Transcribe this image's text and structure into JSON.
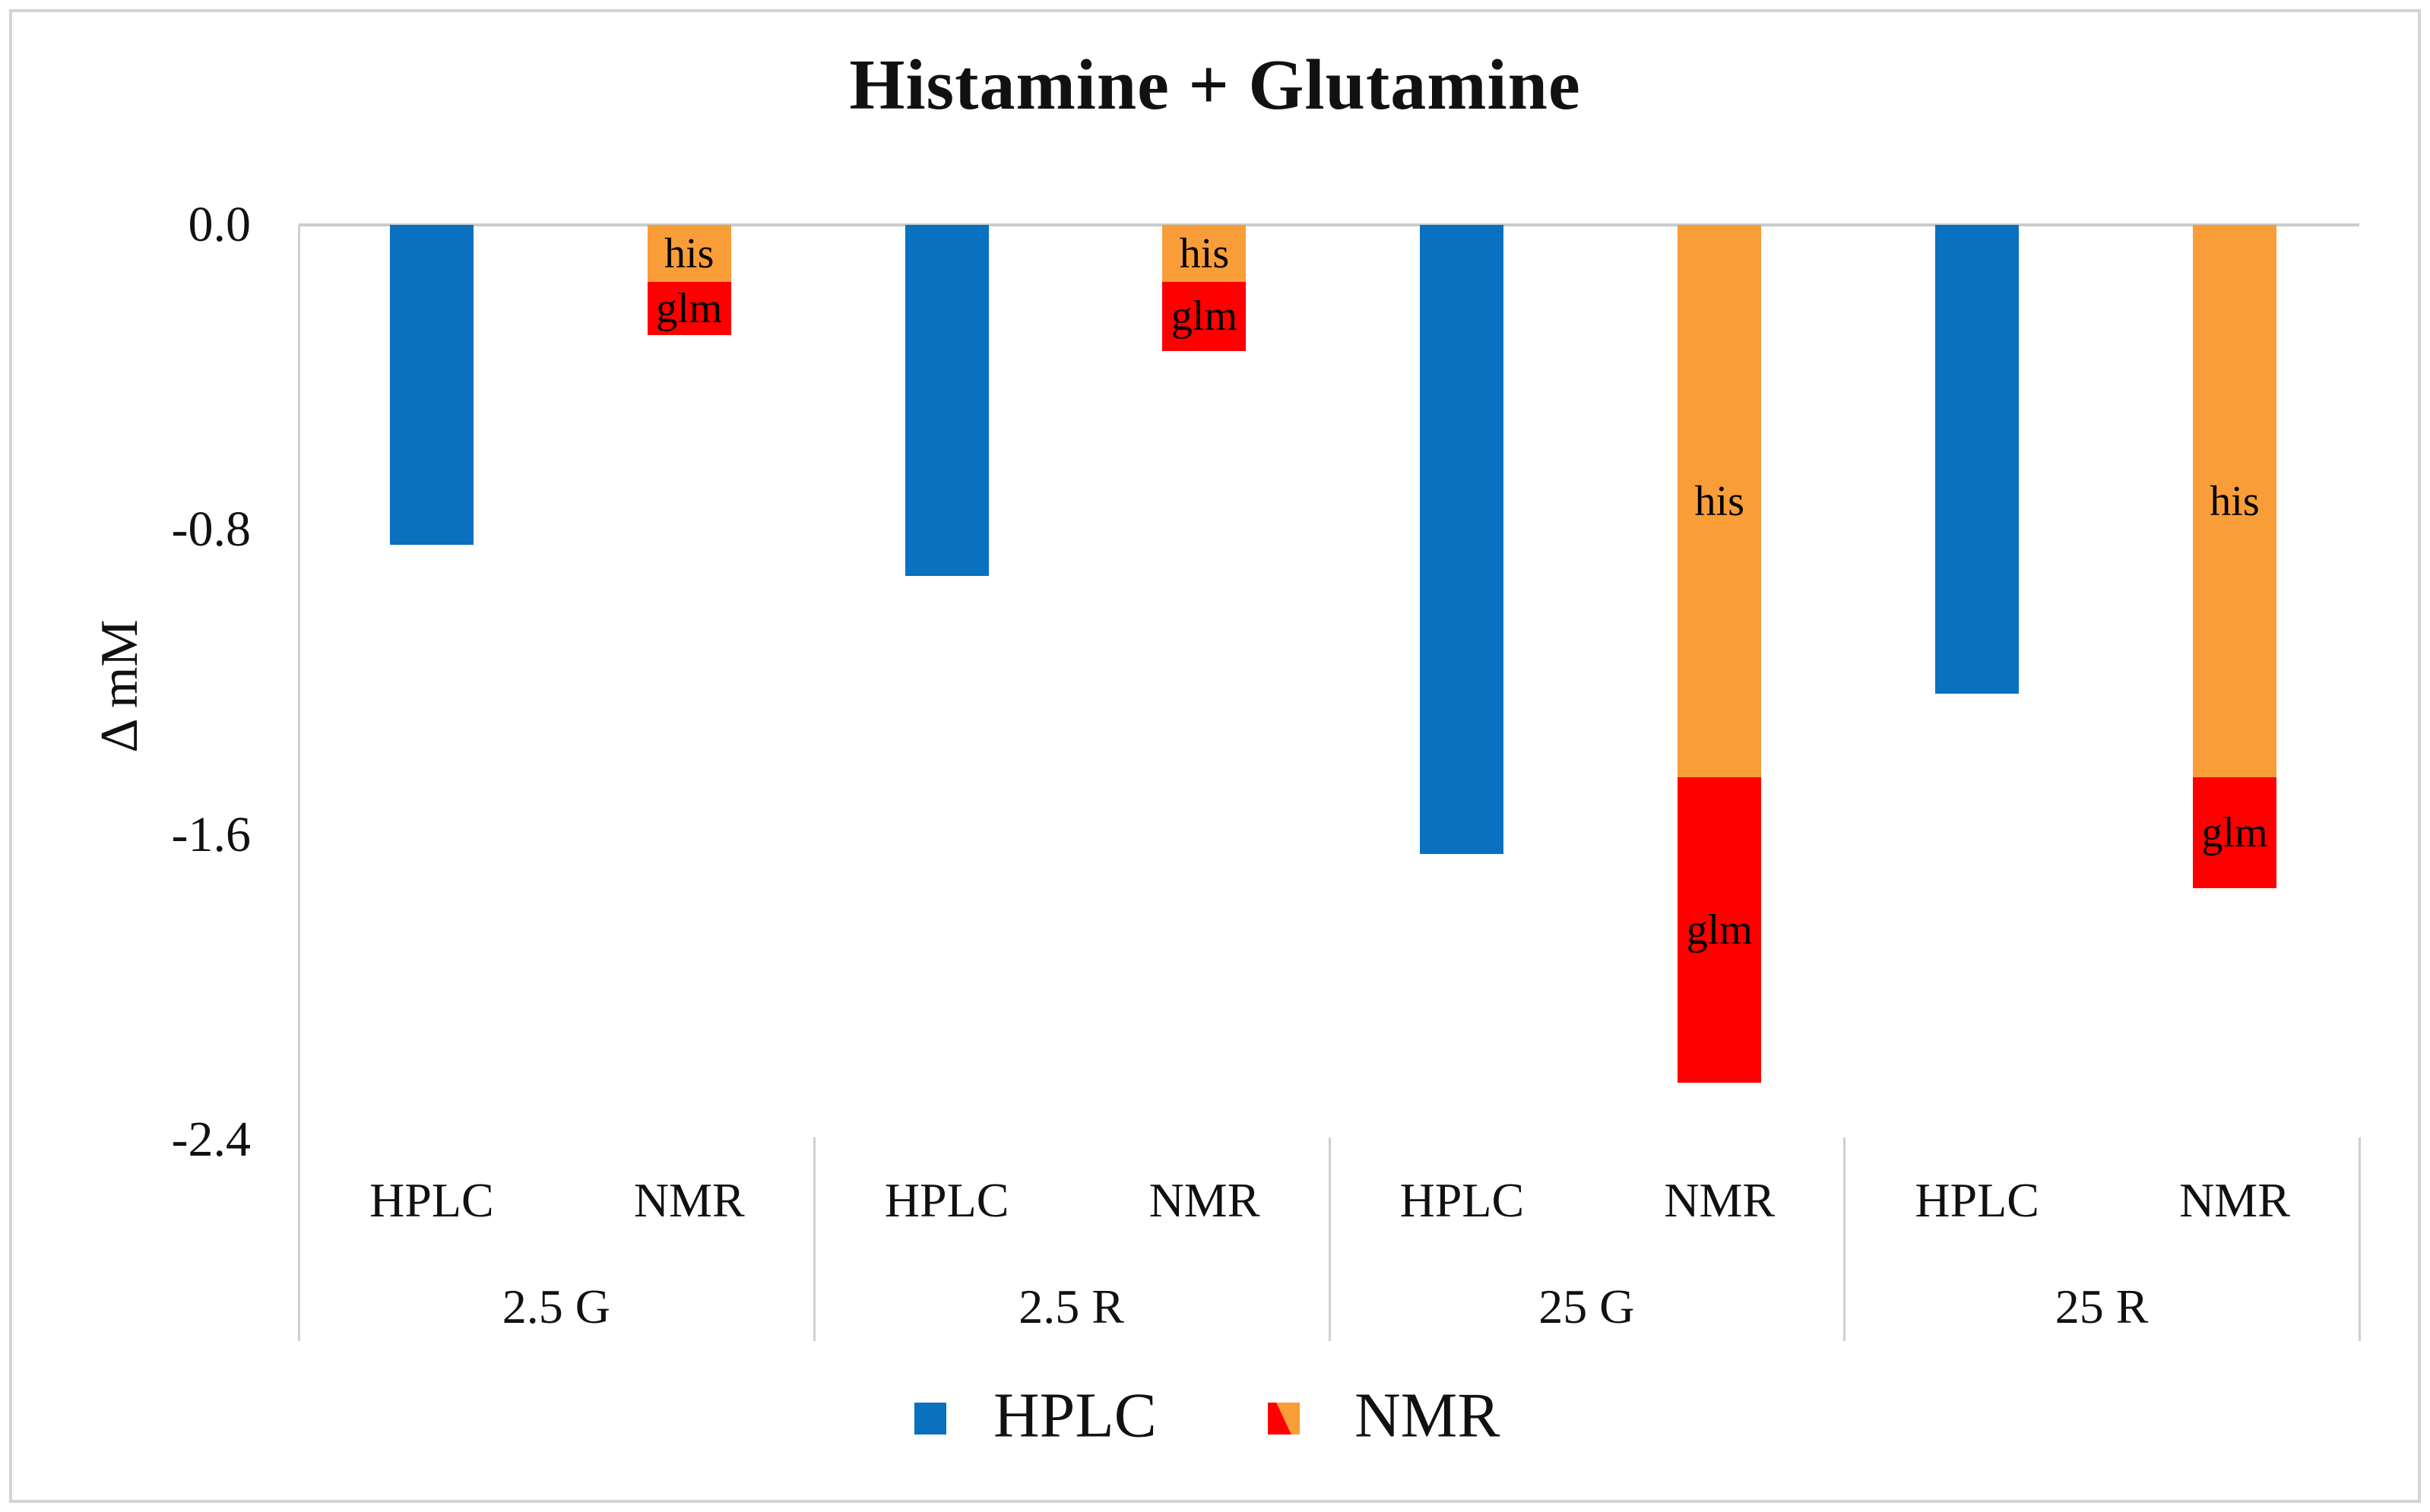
{
  "chart_data": {
    "type": "bar",
    "title": "Histamine + Glutamine",
    "ylabel": "Δ mM",
    "ylim": [
      -2.4,
      0.0
    ],
    "yticks": [
      0.0,
      -0.8,
      -1.6,
      -2.4
    ],
    "ytick_labels": [
      "0.0",
      "-0.8",
      "-1.6",
      "-2.4"
    ],
    "groups": [
      "2.5 G",
      "2.5 R",
      "25 G",
      "25 R"
    ],
    "bar_column_labels": [
      "HPLC",
      "NMR"
    ],
    "series": [
      {
        "name": "HPLC",
        "bar": "HPLC",
        "segment_label": "",
        "color_key": "hplc",
        "values": [
          -0.84,
          -0.92,
          -1.65,
          -1.23
        ]
      },
      {
        "name": "NMR his",
        "bar": "NMR",
        "segment_label": "his",
        "color_key": "orange",
        "values": [
          -0.15,
          -0.15,
          -1.45,
          -1.45
        ]
      },
      {
        "name": "NMR glm",
        "bar": "NMR",
        "segment_label": "glm",
        "color_key": "red",
        "values": [
          -0.14,
          -0.18,
          -0.8,
          -0.29
        ]
      }
    ],
    "legend": [
      {
        "label": "HPLC",
        "swatch": "solid-blue"
      },
      {
        "label": "NMR",
        "swatch": "diagonal-red-orange"
      }
    ],
    "legend_position": "bottom-center",
    "grid": "zero-line-only",
    "colors": {
      "hplc": "#0a70c0",
      "orange": "#f99d38",
      "red": "#fe0000",
      "grid": "#cdd0d1",
      "zero_line": "#c8cccd",
      "text": "#111111",
      "frame": "#d2d5d6"
    }
  }
}
